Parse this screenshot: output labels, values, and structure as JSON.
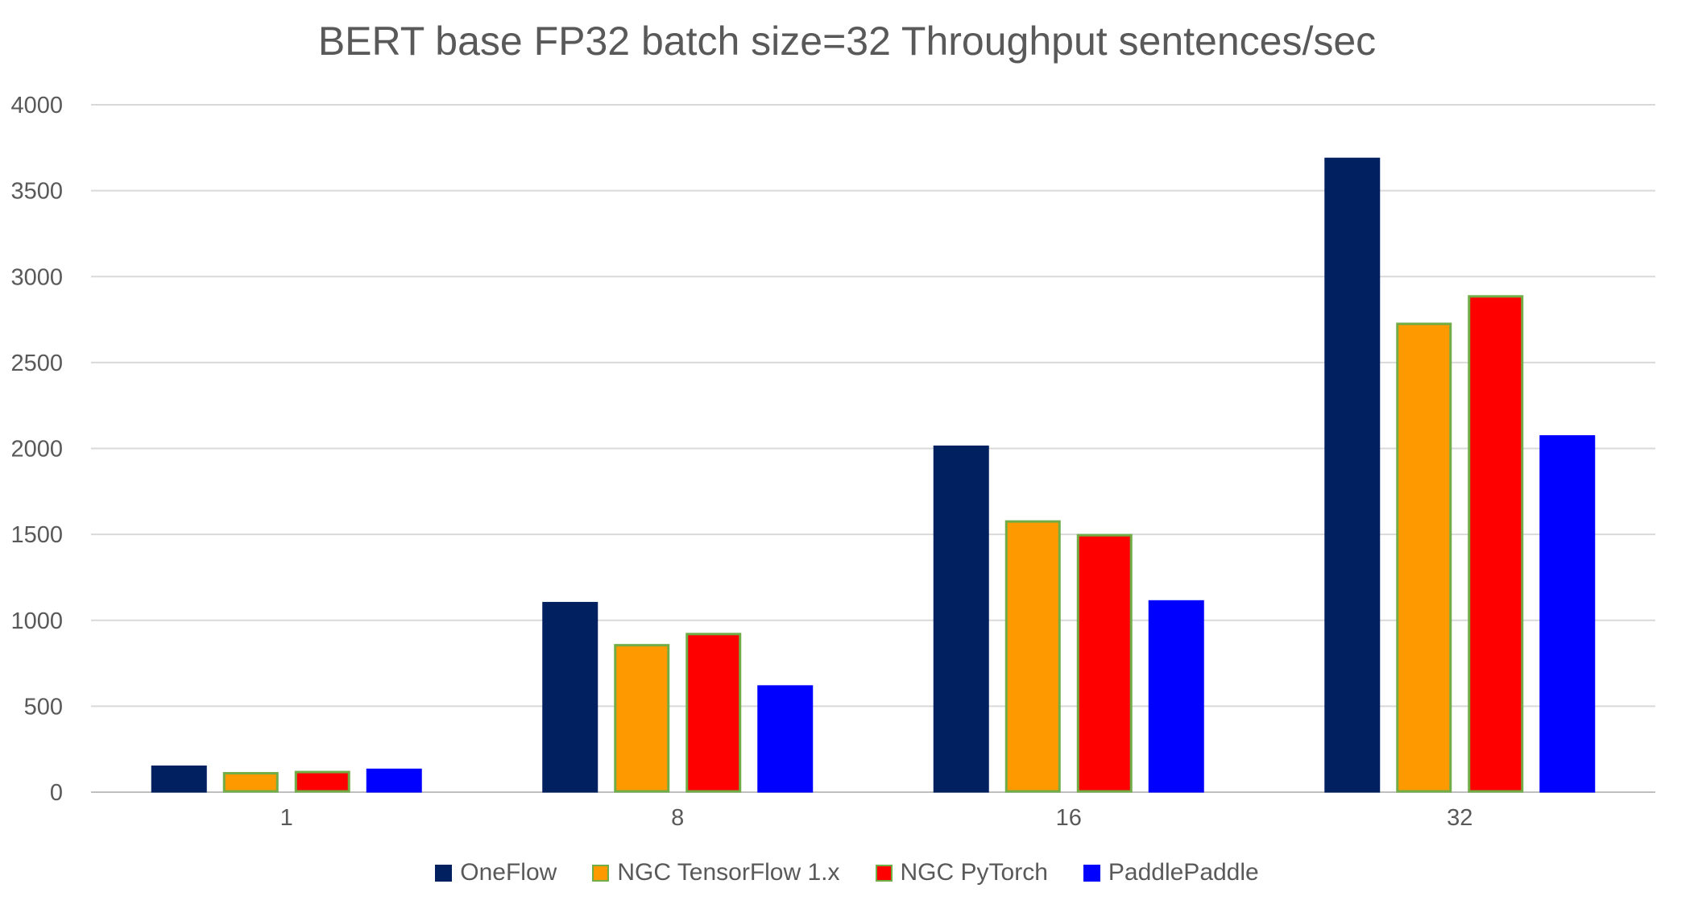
{
  "chart_data": {
    "type": "bar",
    "title": "BERT base FP32 batch size=32 Throughput sentences/sec",
    "xlabel": "",
    "ylabel": "",
    "categories": [
      "1",
      "8",
      "16",
      "32"
    ],
    "ylim": [
      0,
      4000
    ],
    "yticks": [
      0,
      500,
      1000,
      1500,
      2000,
      2500,
      3000,
      3500,
      4000
    ],
    "grid": true,
    "legend_position": "bottom",
    "series": [
      {
        "name": "OneFlow",
        "color": "#002060",
        "border": "#002060",
        "values": [
          148,
          1100,
          2010,
          3685
        ]
      },
      {
        "name": "NGC TensorFlow 1.x",
        "color": "#FF9900",
        "border": "#70AD47",
        "values": [
          110,
          855,
          1575,
          2725
        ]
      },
      {
        "name": "NGC PyTorch",
        "color": "#FF0000",
        "border": "#70AD47",
        "values": [
          117,
          920,
          1495,
          2885
        ]
      },
      {
        "name": "PaddlePaddle",
        "color": "#0000FF",
        "border": "#0000FF",
        "values": [
          130,
          615,
          1110,
          2070
        ]
      }
    ]
  }
}
